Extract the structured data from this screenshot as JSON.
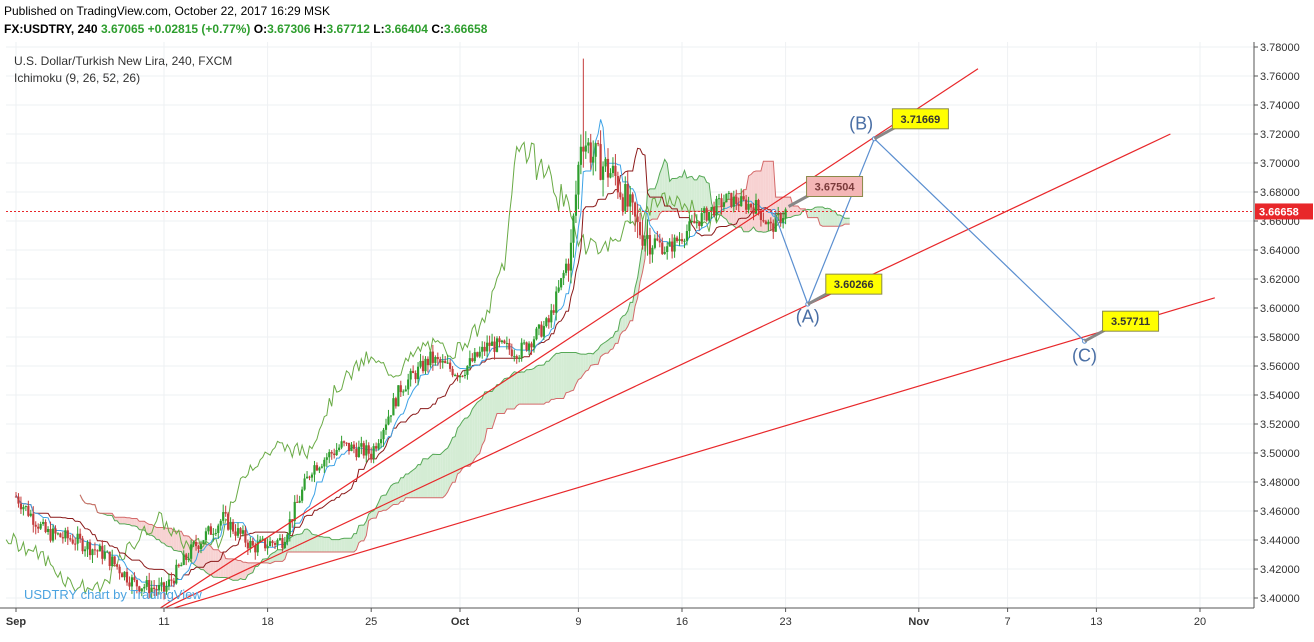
{
  "header": {
    "published": "Published on TradingView.com, October 22, 2017 16:29 MSK",
    "symbol": "FX:USDTRY, 240",
    "last": "3.67065",
    "change": "+0.02815 (+0.77%)",
    "o_label": "O:",
    "o_value": "3.67306",
    "h_label": "H:",
    "h_value": "3.67712",
    "l_label": "L:",
    "l_value": "3.66404",
    "c_label": "C:",
    "c_value": "3.66658"
  },
  "legend": {
    "title": "U.S. Dollar/Turkish New Lira, 240, FXCM",
    "indicator": "Ichimoku (9, 26, 52, 26)"
  },
  "watermark": "USDTRY chart by TradingView",
  "colors": {
    "up": "#2e9e2e",
    "down": "#c43c3c",
    "trendline": "#e8272a",
    "tenkan": "#3ea3e6",
    "kijun": "#8b1a1a",
    "chikou": "#6aab46",
    "cloud_bull": "#d4ecd4",
    "cloud_bear": "#f7d2d2",
    "wave": "#5b8fd0",
    "callout": "#ffff00",
    "price_tag": "#e8272a"
  },
  "chart_data": {
    "type": "candlestick",
    "y_axis": {
      "min": 3.39,
      "max": 3.78,
      "ticks": [
        "3.40000",
        "3.42000",
        "3.44000",
        "3.46000",
        "3.48000",
        "3.50000",
        "3.52000",
        "3.54000",
        "3.56000",
        "3.58000",
        "3.60000",
        "3.62000",
        "3.64000",
        "3.66000",
        "3.68000",
        "3.70000",
        "3.72000",
        "3.74000",
        "3.76000",
        "3.78000"
      ]
    },
    "x_axis": {
      "ticks": [
        {
          "label": "Sep",
          "day": 1
        },
        {
          "label": "11",
          "day": 11
        },
        {
          "label": "18",
          "day": 18
        },
        {
          "label": "25",
          "day": 25
        },
        {
          "label": "Oct",
          "day": 31
        },
        {
          "label": "9",
          "day": 39
        },
        {
          "label": "16",
          "day": 46
        },
        {
          "label": "23",
          "day": 53
        },
        {
          "label": "Nov",
          "day": 62
        },
        {
          "label": "7",
          "day": 68
        },
        {
          "label": "13",
          "day": 74
        },
        {
          "label": "20",
          "day": 81
        }
      ]
    },
    "current_price": "3.66658",
    "anchors": [
      {
        "day": 1,
        "price": 3.47
      },
      {
        "day": 3,
        "price": 3.445
      },
      {
        "day": 5,
        "price": 3.44
      },
      {
        "day": 7,
        "price": 3.43
      },
      {
        "day": 9,
        "price": 3.41
      },
      {
        "day": 11,
        "price": 3.405
      },
      {
        "day": 13,
        "price": 3.435
      },
      {
        "day": 15,
        "price": 3.455
      },
      {
        "day": 17,
        "price": 3.435
      },
      {
        "day": 19,
        "price": 3.44
      },
      {
        "day": 21,
        "price": 3.49
      },
      {
        "day": 23,
        "price": 3.505
      },
      {
        "day": 25,
        "price": 3.5
      },
      {
        "day": 27,
        "price": 3.545
      },
      {
        "day": 29,
        "price": 3.565
      },
      {
        "day": 31,
        "price": 3.555
      },
      {
        "day": 33,
        "price": 3.575
      },
      {
        "day": 35,
        "price": 3.57
      },
      {
        "day": 37,
        "price": 3.59
      },
      {
        "day": 38.5,
        "price": 3.64
      },
      {
        "day": 39.2,
        "price": 3.72
      },
      {
        "day": 40,
        "price": 3.705
      },
      {
        "day": 41.5,
        "price": 3.69
      },
      {
        "day": 43,
        "price": 3.655
      },
      {
        "day": 45,
        "price": 3.64
      },
      {
        "day": 47,
        "price": 3.66
      },
      {
        "day": 49,
        "price": 3.675
      },
      {
        "day": 51,
        "price": 3.67
      },
      {
        "day": 52,
        "price": 3.655
      },
      {
        "day": 53,
        "price": 3.6666
      }
    ],
    "trendlines": [
      {
        "from": {
          "day": 10,
          "price": 3.388
        },
        "to": {
          "day": 66,
          "price": 3.765
        }
      },
      {
        "from": {
          "day": 10,
          "price": 3.388
        },
        "to": {
          "day": 79,
          "price": 3.72
        }
      },
      {
        "from": {
          "day": 10,
          "price": 3.388
        },
        "to": {
          "day": 82,
          "price": 3.607
        }
      }
    ],
    "wave_points": [
      {
        "day": 52.2,
        "price": 3.6666
      },
      {
        "day": 54.5,
        "price": 3.60266
      },
      {
        "day": 59.0,
        "price": 3.71669
      },
      {
        "day": 73.2,
        "price": 3.57711
      }
    ],
    "callouts": [
      {
        "text": "3.67504",
        "day": 53.2,
        "price": 3.67,
        "style": "pink"
      },
      {
        "text": "3.60266",
        "day": 54.5,
        "price": 3.60266,
        "style": "yellow"
      },
      {
        "text": "3.71669",
        "day": 59.0,
        "price": 3.71669,
        "style": "yellow"
      },
      {
        "text": "3.57711",
        "day": 73.2,
        "price": 3.57711,
        "style": "yellow"
      }
    ],
    "wave_labels": [
      {
        "text": "(A)",
        "day": 54.5,
        "price": 3.59
      },
      {
        "text": "(B)",
        "day": 58.1,
        "price": 3.723
      },
      {
        "text": "(C)",
        "day": 73.2,
        "price": 3.563
      }
    ]
  }
}
